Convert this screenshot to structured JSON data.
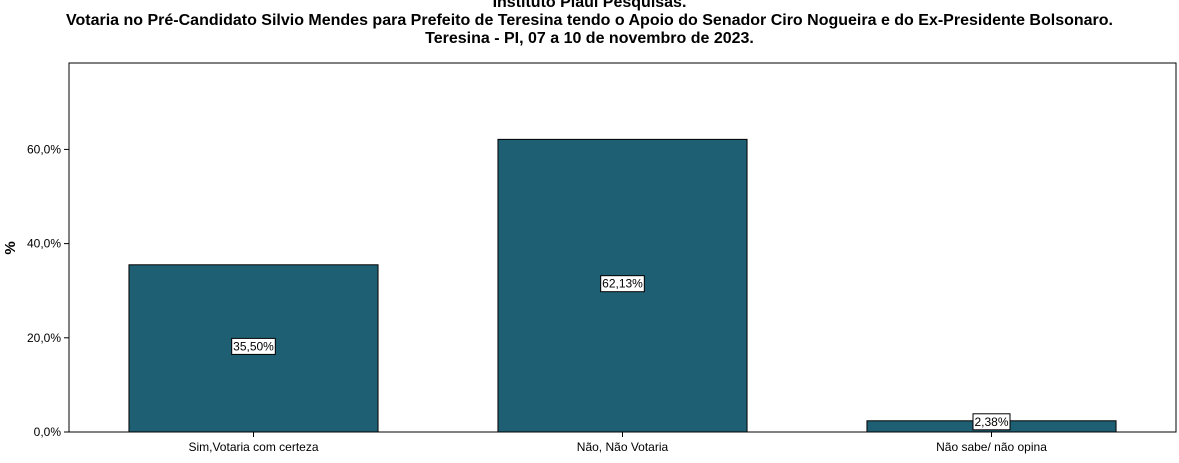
{
  "chart_data": {
    "type": "bar",
    "title": "Instituto Piauí Pesquisas.",
    "subtitle": "Votaria no Pré-Candidato Silvio Mendes para Prefeito de Teresina tendo o Apoio do Senador Ciro Nogueira e do Ex-Presidente Bolsonaro.",
    "subtitle2": "Teresina - PI, 07 a 10 de novembro de 2023.",
    "xlabel": "",
    "ylabel": "%",
    "categories": [
      "Sim,Votaria com certeza",
      "Não, Não Votaria",
      "Não sabe/ não opina"
    ],
    "values": [
      35.5,
      62.13,
      2.38
    ],
    "data_labels": [
      "35,50%",
      "62,13%",
      "2,38%"
    ],
    "yticks": [
      0,
      20,
      40,
      60
    ],
    "ytick_labels": [
      "0,0%",
      "20,0%",
      "40,0%",
      "60,0%"
    ],
    "ylim": [
      0,
      78
    ],
    "grid": false,
    "legend": "none",
    "bar_color": "#1e5f74"
  }
}
